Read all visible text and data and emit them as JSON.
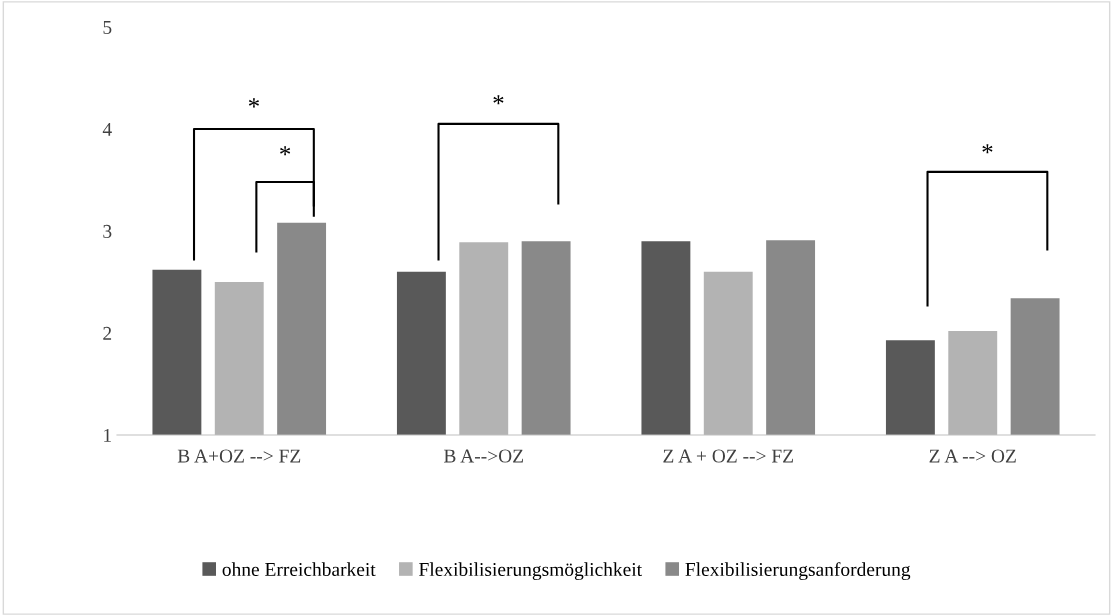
{
  "chart_data": {
    "type": "bar",
    "categories": [
      "B A+OZ --> FZ",
      "B A-->OZ",
      "Z A + OZ --> FZ",
      "Z A --> OZ"
    ],
    "series": [
      {
        "name": "ohne Erreichbarkeit",
        "color": "#595959",
        "values": [
          2.62,
          2.6,
          2.9,
          1.93
        ]
      },
      {
        "name": "Flexibilisierungsmöglichkeit",
        "color": "#b3b3b3",
        "values": [
          2.5,
          2.89,
          2.6,
          2.02
        ]
      },
      {
        "name": "Flexibilisierungsanforderung",
        "color": "#898989",
        "values": [
          3.08,
          2.9,
          2.91,
          2.34
        ]
      }
    ],
    "ylim": [
      1,
      5
    ],
    "yticks": [
      1,
      2,
      3,
      4,
      5
    ],
    "grid": false,
    "legend": "bottom",
    "annotations": [
      "*",
      "*",
      "*",
      "*"
    ]
  }
}
